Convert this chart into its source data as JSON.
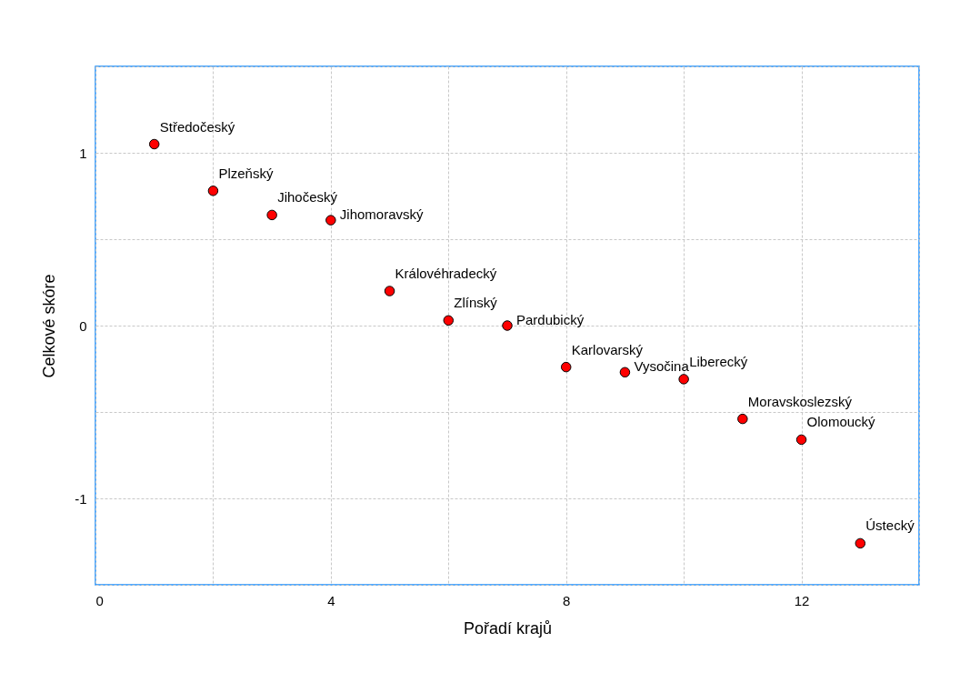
{
  "chart_data": {
    "type": "scatter",
    "xlabel": "Pořadí krajů",
    "ylabel": "Celkové skóre",
    "x": [
      1,
      2,
      3,
      4,
      5,
      6,
      7,
      8,
      9,
      10,
      11,
      12,
      13
    ],
    "values": [
      1.05,
      0.78,
      0.64,
      0.61,
      0.2,
      0.03,
      0.0,
      -0.24,
      -0.27,
      -0.31,
      -0.54,
      -0.66,
      -1.26
    ],
    "color": "#ff0000",
    "marker": "circle",
    "grid": true,
    "xlim": [
      0,
      14
    ],
    "xticks": [
      0,
      {
        "value": 2,
        "label": null
      },
      4,
      {
        "value": 6,
        "label": null
      },
      8,
      {
        "value": 10,
        "label": null
      },
      12,
      {
        "value": 14,
        "label": null
      }
    ],
    "ylim": [
      -1.5,
      1.5
    ],
    "yticks": [
      {
        "value": -1.5,
        "label": null
      },
      -1,
      {
        "value": -0.5,
        "label": null
      },
      0,
      {
        "value": 0.5,
        "label": null
      },
      1,
      {
        "value": 1.5,
        "label": null
      }
    ],
    "annotations": [
      {
        "text": "Středočeský",
        "x": 1,
        "y": 1.05
      },
      {
        "text": "Plzeňský",
        "x": 2,
        "y": 0.78
      },
      {
        "text": "Jihočeský",
        "x": 3,
        "y": 0.64
      },
      {
        "text": "Jihomoravský",
        "x": 4,
        "y": 0.61
      },
      {
        "text": "Královéhradecký",
        "x": 5,
        "y": 0.2
      },
      {
        "text": "Zlínský",
        "x": 6,
        "y": 0.03
      },
      {
        "text": "Pardubický",
        "x": 7,
        "y": 0.0
      },
      {
        "text": "Karlovarský",
        "x": 8,
        "y": -0.24
      },
      {
        "text": "Vysočina",
        "x": 9,
        "y": -0.27
      },
      {
        "text": "Liberecký",
        "x": 10,
        "y": -0.31
      },
      {
        "text": "Moravskoslezský",
        "x": 11,
        "y": -0.54
      },
      {
        "text": "Olomoucký",
        "x": 12,
        "y": -0.66
      },
      {
        "text": "Ústecký",
        "x": 13,
        "y": -1.26
      }
    ]
  }
}
